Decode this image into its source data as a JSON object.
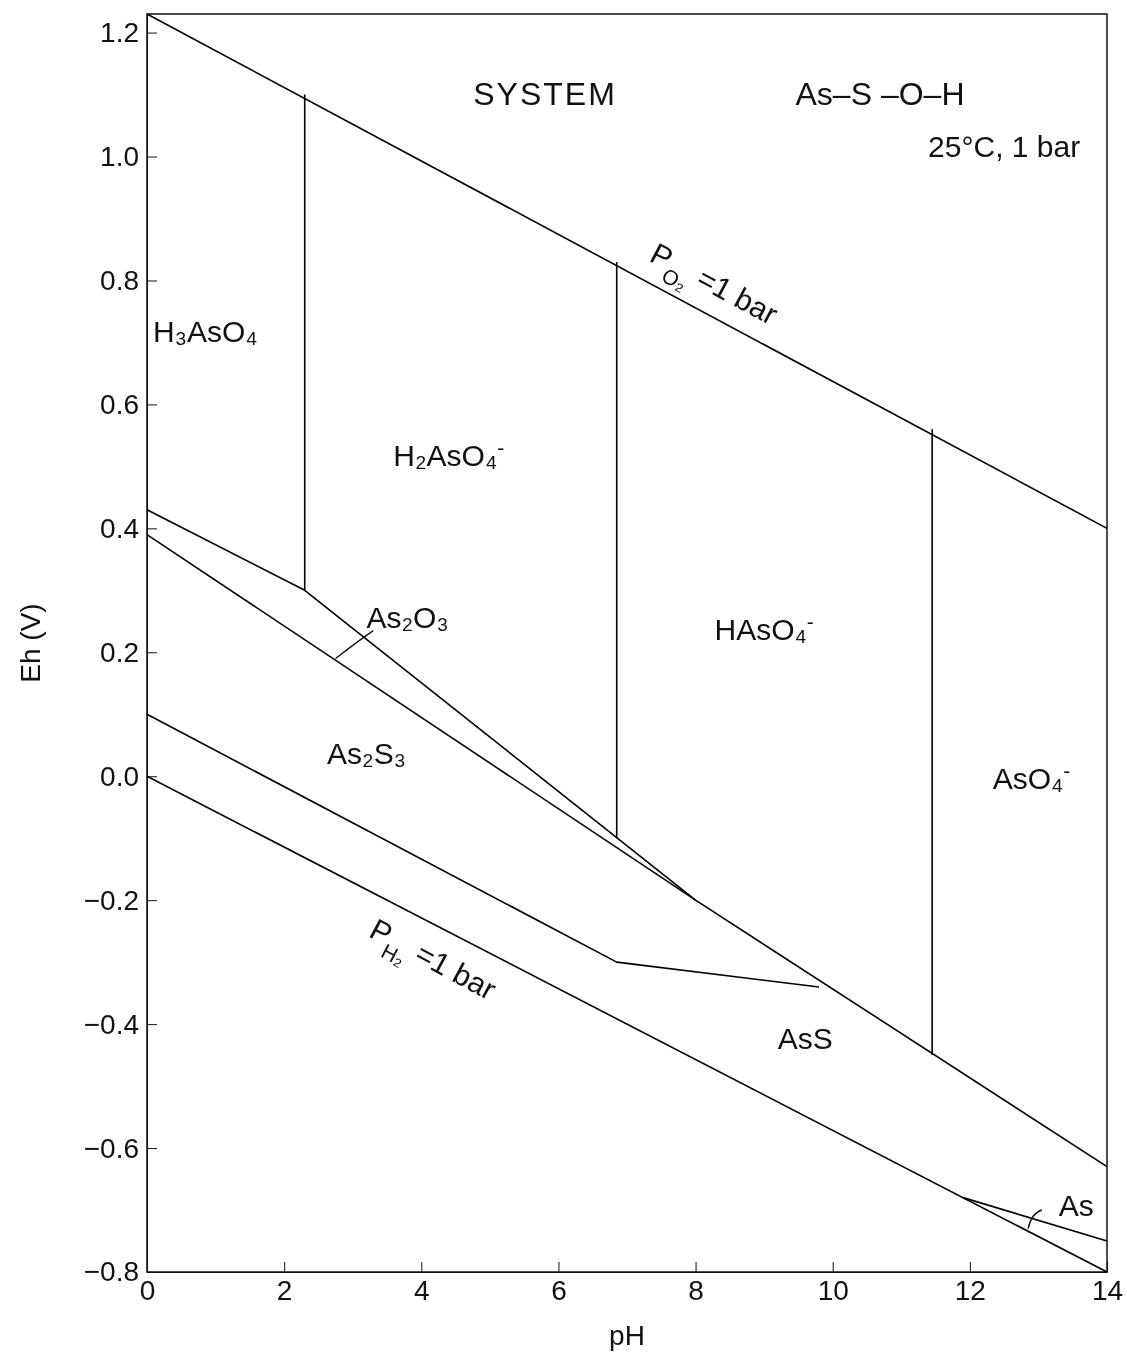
{
  "chart_data": {
    "type": "line",
    "title": "SYSTEM",
    "subtitle": "As–S –O–H",
    "xlabel": "pH",
    "ylabel": "Eh (V)",
    "xlim": [
      0,
      14
    ],
    "ylim": [
      -0.8,
      1.23
    ],
    "xticks": [
      0,
      2,
      4,
      6,
      8,
      10,
      12,
      14
    ],
    "yticks": [
      {
        "value": -0.8,
        "label": "−0.8"
      },
      {
        "value": -0.6,
        "label": "−0.6"
      },
      {
        "value": -0.4,
        "label": "−0.4"
      },
      {
        "value": -0.2,
        "label": "−0.2"
      },
      {
        "value": 0,
        "label": "0.0"
      },
      {
        "value": 0.2,
        "label": "0.2"
      },
      {
        "value": 0.4,
        "label": "0.4"
      },
      {
        "value": 0.6,
        "label": "0.6"
      },
      {
        "value": 0.8,
        "label": "0.8"
      },
      {
        "value": 1.0,
        "label": "1.0"
      },
      {
        "value": 1.2,
        "label": "1.2"
      }
    ],
    "grid": false,
    "marker": "none",
    "line_style": "solid",
    "series": [
      {
        "color": "#000000",
        "x": [
          0,
          14
        ],
        "values": [
          1.23,
          0.4
        ]
      },
      {
        "color": "#000000",
        "x": [
          0,
          14
        ],
        "values": [
          0,
          -0.8
        ]
      },
      {
        "color": "#000000",
        "x": [
          2.3,
          2.3
        ],
        "values": [
          0.3,
          1.1
        ]
      },
      {
        "color": "#000000",
        "x": [
          6.85,
          6.85
        ],
        "values": [
          -0.1,
          0.83
        ]
      },
      {
        "color": "#000000",
        "x": [
          11.45,
          11.45
        ],
        "values": [
          -0.45,
          0.56
        ]
      },
      {
        "color": "#000000",
        "x": [
          0,
          2.3,
          8,
          14
        ],
        "values": [
          0.43,
          0.3,
          -0.2,
          -0.63
        ]
      },
      {
        "color": "#000000",
        "x": [
          0,
          8
        ],
        "values": [
          0.39,
          -0.2
        ]
      },
      {
        "color": "#000000",
        "x": [
          0,
          6.85,
          9.8
        ],
        "values": [
          0.1,
          -0.3,
          -0.34
        ]
      },
      {
        "color": "#000000",
        "x": [
          11.9,
          14
        ],
        "values": [
          -0.68,
          -0.75
        ]
      }
    ],
    "annotations": [
      "25°C, 1 bar",
      "P$_{O₂}$ =1 bar",
      "P$_{H₂}$ =1 bar",
      "H₃AsO₄",
      "H₂AsO₄$^{-}$",
      "As₂O₃",
      "HAsO₄$^{-}$",
      "AsO₄$^{-}$",
      "As₂S₃",
      "AsS",
      "As"
    ]
  }
}
